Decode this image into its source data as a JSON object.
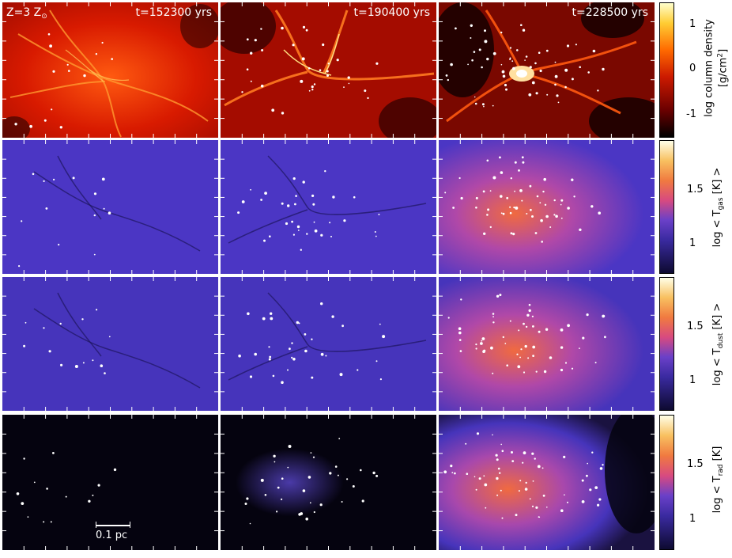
{
  "panel_labels": {
    "metallicity": "Z=3 Z",
    "sun_symbol": "⊙",
    "times": [
      "t=152300 yrs",
      "t=190400 yrs",
      "t=228500 yrs"
    ],
    "scale_bar": "0.1 pc"
  },
  "colorbars": [
    {
      "row": "column-density",
      "label_line1": "log column density",
      "label_line2_pre": "[g/cm",
      "label_line2_sup": "2",
      "label_line2_post": "]",
      "ticks": [
        "1",
        "0",
        "-1"
      ],
      "colormap": "hot"
    },
    {
      "row": "gas-temperature",
      "label_pre": "log < T",
      "label_sub": "gas",
      "label_post": " [K] >",
      "ticks": [
        "1.5",
        "1"
      ],
      "colormap": "plasma-like"
    },
    {
      "row": "dust-temperature",
      "label_pre": "log < T",
      "label_sub": "dust",
      "label_post": " [K] >",
      "ticks": [
        "1.5",
        "1"
      ],
      "colormap": "plasma-like"
    },
    {
      "row": "radiation-temperature",
      "label_pre": "log < T",
      "label_sub": "rad",
      "label_post": " [K]",
      "ticks": [
        "1.5",
        "1"
      ],
      "colormap": "plasma-like"
    }
  ],
  "colors": {
    "hot_low": "#000000",
    "hot_mid": "#cc1a00",
    "hot_high": "#ffffcc",
    "temp_low": "#0d0a30",
    "temp_mid": "#5a3fd0",
    "temp_warm": "#e8603a",
    "temp_high": "#ffffe8",
    "star": "#ffffff"
  }
}
